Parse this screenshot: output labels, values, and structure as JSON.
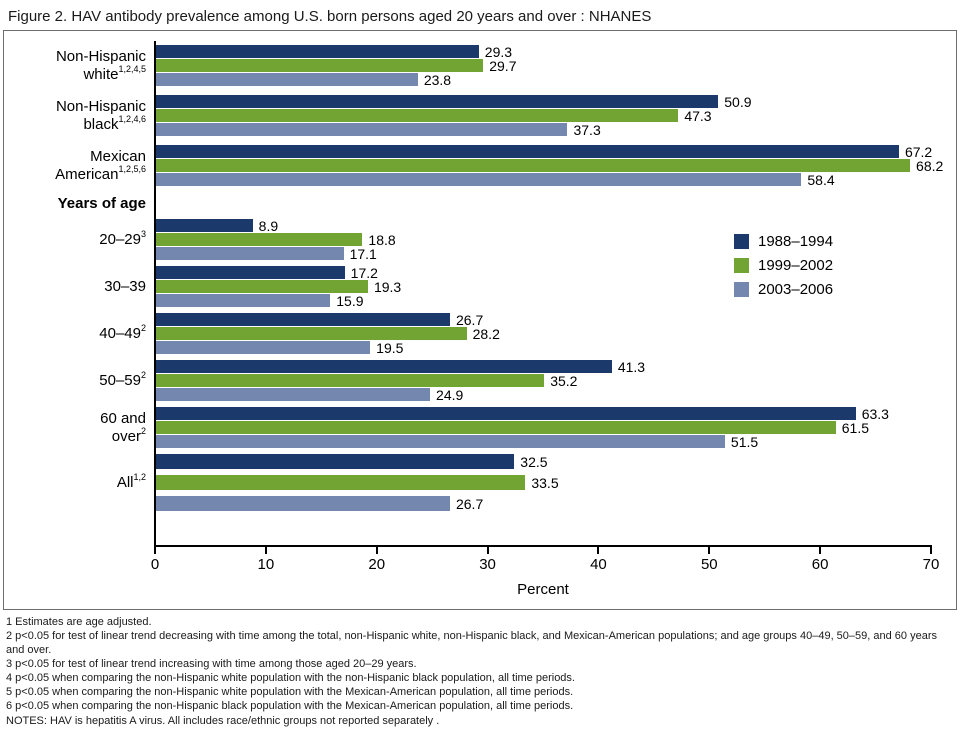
{
  "title": "Figure 2. HAV antibody prevalence among U.S. born persons aged 20 years and over : NHANES",
  "chart_data": {
    "type": "bar",
    "orientation": "horizontal",
    "title": "Figure 2. HAV antibody prevalence among U.S. born persons aged 20 years and over : NHANES",
    "xlabel": "Percent",
    "xlim": [
      0,
      70
    ],
    "xticks": [
      0,
      10,
      20,
      30,
      40,
      50,
      60,
      70
    ],
    "grid": "off",
    "legend_position": "middle-right",
    "section_header": "Years of age",
    "legend": [
      {
        "name": "1988–1994",
        "color": "#1b3a6b"
      },
      {
        "name": "1999–2002",
        "color": "#72a433"
      },
      {
        "name": "2003–2006",
        "color": "#7488af"
      }
    ],
    "groups": [
      {
        "section": "race",
        "label_lines": [
          "Non-Hispanic",
          "white"
        ],
        "sup": "1,2,4,5",
        "values": [
          29.3,
          29.7,
          23.8
        ]
      },
      {
        "section": "race",
        "label_lines": [
          "Non-Hispanic",
          "black"
        ],
        "sup": "1,2,4,6",
        "values": [
          50.9,
          47.3,
          37.3
        ]
      },
      {
        "section": "race",
        "label_lines": [
          "Mexican",
          "American"
        ],
        "sup": "1,2,5,6",
        "values": [
          67.2,
          68.2,
          58.4
        ]
      },
      {
        "section": "age",
        "label_lines": [
          "20–29"
        ],
        "sup": "3",
        "values": [
          8.9,
          18.8,
          17.1
        ]
      },
      {
        "section": "age",
        "label_lines": [
          "30–39"
        ],
        "sup": "",
        "values": [
          17.2,
          19.3,
          15.9
        ]
      },
      {
        "section": "age",
        "label_lines": [
          "40–49"
        ],
        "sup": "2",
        "values": [
          26.7,
          28.2,
          19.5
        ]
      },
      {
        "section": "age",
        "label_lines": [
          "50–59"
        ],
        "sup": "2",
        "values": [
          41.3,
          35.2,
          24.9
        ]
      },
      {
        "section": "age",
        "label_lines": [
          "60 and",
          "over"
        ],
        "sup": "2",
        "values": [
          63.3,
          61.5,
          51.5
        ]
      },
      {
        "section": "all",
        "label_lines": [
          "All"
        ],
        "sup": "1,2",
        "values": [
          32.5,
          33.5,
          26.7
        ]
      }
    ]
  },
  "footnotes": [
    "1 Estimates are age adjusted.",
    "2 p<0.05 for test of linear trend decreasing with time among the total, non-Hispanic white, non-Hispanic black, and Mexican-American populations; and age groups 40–49, 50–59, and 60 years and over.",
    "3 p<0.05 for test of linear trend increasing with time among those aged 20–29 years.",
    "4 p<0.05 when comparing the non-Hispanic white population with the non-Hispanic black population, all time periods.",
    "5 p<0.05 when comparing the non-Hispanic white population with the Mexican-American population, all time periods.",
    "6 p<0.05 when comparing the non-Hispanic black population with the Mexican-American population, all time periods.",
    "NOTES: HAV is hepatitis A virus. All  includes race/ethnic groups not reported separately ."
  ]
}
